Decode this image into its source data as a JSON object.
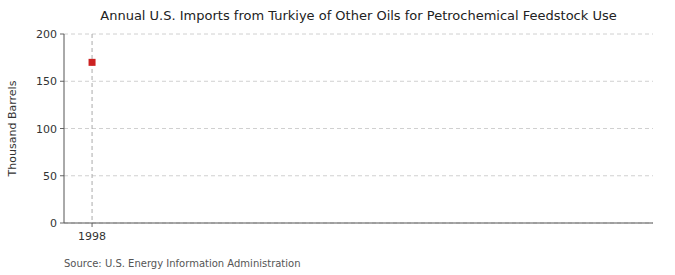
{
  "chart_data": {
    "type": "scatter",
    "title": "Annual U.S. Imports from Turkiye of Other Oils for Petrochemical Feedstock Use",
    "ylabel": "Thousand Barrels",
    "annotations": [
      "Source: U.S. Energy Information Administration"
    ],
    "x": [
      1998
    ],
    "values": [
      170
    ],
    "color": "#cc2222",
    "marker": "square",
    "xlim": [
      1997.4,
      2010
    ],
    "ylim": [
      0,
      200
    ],
    "xticks": [
      1998
    ],
    "yticks": [
      0,
      50,
      100,
      150,
      200
    ],
    "grid": true
  }
}
